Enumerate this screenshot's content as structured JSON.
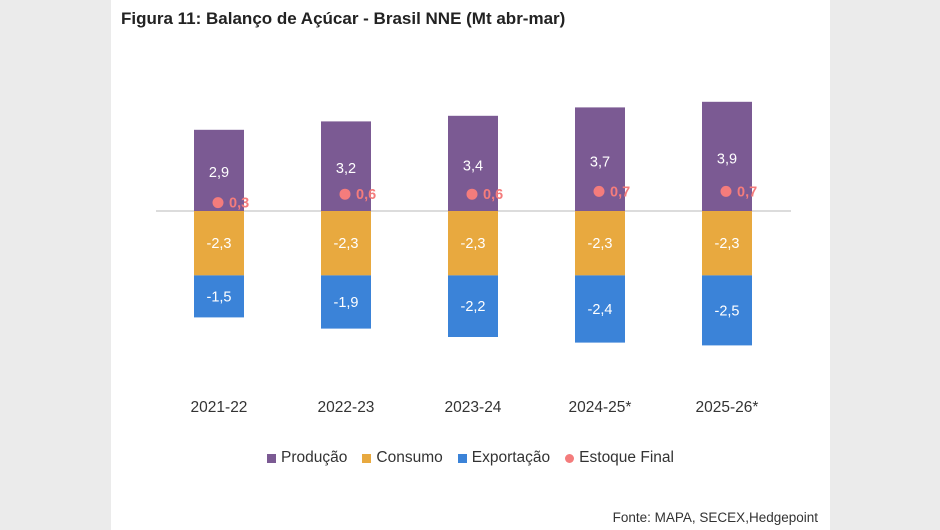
{
  "title": "Figura 11: Balanço de Açúcar - Brasil NNE (Mt abr-mar)",
  "source": "Fonte: MAPA, SECEX,Hedgepoint",
  "colors": {
    "producao": "#7b5a93",
    "consumo": "#e8a93f",
    "exportacao": "#3b83d8",
    "estoque": "#f47c7c",
    "baseline": "#d0d0d0"
  },
  "chart_data": {
    "type": "bar",
    "stacked": true,
    "categories": [
      "2021-22",
      "2022-23",
      "2023-24",
      "2024-25*",
      "2025-26*"
    ],
    "series": [
      {
        "name": "Produção",
        "kind": "bar",
        "values": [
          2.9,
          3.2,
          3.4,
          3.7,
          3.9
        ],
        "labels": [
          "2,9",
          "3,2",
          "3,4",
          "3,7",
          "3,9"
        ]
      },
      {
        "name": "Consumo",
        "kind": "bar",
        "values": [
          -2.3,
          -2.3,
          -2.3,
          -2.3,
          -2.3
        ],
        "labels": [
          "-2,3",
          "-2,3",
          "-2,3",
          "-2,3",
          "-2,3"
        ]
      },
      {
        "name": "Exportação",
        "kind": "bar",
        "values": [
          -1.5,
          -1.9,
          -2.2,
          -2.4,
          -2.5
        ],
        "labels": [
          "-1,5",
          "-1,9",
          "-2,2",
          "-2,4",
          "-2,5"
        ]
      },
      {
        "name": "Estoque Final",
        "kind": "point",
        "values": [
          0.3,
          0.6,
          0.6,
          0.7,
          0.7
        ],
        "labels": [
          "0,3",
          "0,6",
          "0,6",
          "0,7",
          "0,7"
        ]
      }
    ],
    "grid": false,
    "legend_position": "bottom"
  }
}
